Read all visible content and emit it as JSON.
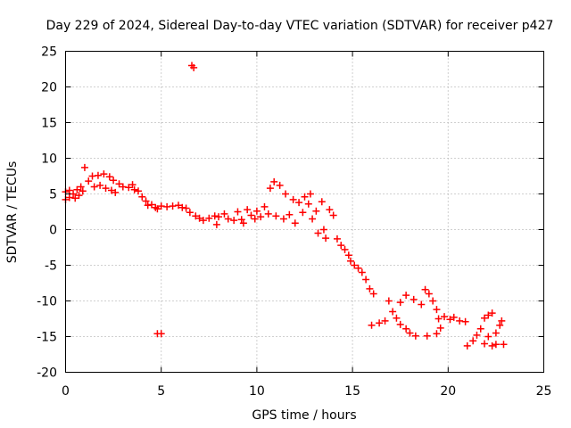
{
  "chart_data": {
    "type": "scatter",
    "title": "Day 229 of 2024, Sidereal Day-to-day VTEC variation (SDTVAR) for receiver p427",
    "xlabel": "GPS time / hours",
    "ylabel": "SDTVAR / TECUs",
    "xlim": [
      0,
      25
    ],
    "ylim": [
      -20,
      25
    ],
    "xticks": [
      0,
      5,
      10,
      15,
      20,
      25
    ],
    "yticks": [
      -20,
      -15,
      -10,
      -5,
      0,
      5,
      10,
      15,
      20,
      25
    ],
    "grid": true,
    "marker": "+",
    "series": [
      {
        "name": "SDTVAR",
        "color": "#ff0000",
        "points": [
          [
            0.0,
            5.3
          ],
          [
            0.0,
            4.2
          ],
          [
            0.2,
            5.5
          ],
          [
            0.2,
            4.5
          ],
          [
            0.4,
            5.0
          ],
          [
            0.5,
            4.4
          ],
          [
            0.6,
            5.6
          ],
          [
            0.7,
            4.8
          ],
          [
            0.8,
            6.0
          ],
          [
            0.9,
            5.4
          ],
          [
            1.0,
            8.7
          ],
          [
            1.2,
            6.8
          ],
          [
            1.4,
            7.5
          ],
          [
            1.5,
            6.0
          ],
          [
            1.7,
            7.6
          ],
          [
            1.8,
            6.2
          ],
          [
            2.0,
            7.8
          ],
          [
            2.1,
            5.8
          ],
          [
            2.3,
            7.4
          ],
          [
            2.4,
            5.5
          ],
          [
            2.5,
            6.9
          ],
          [
            2.6,
            5.2
          ],
          [
            2.8,
            6.4
          ],
          [
            3.0,
            6.0
          ],
          [
            3.3,
            5.9
          ],
          [
            3.5,
            6.3
          ],
          [
            3.6,
            5.6
          ],
          [
            3.8,
            5.4
          ],
          [
            4.0,
            4.6
          ],
          [
            4.2,
            4.0
          ],
          [
            4.3,
            3.4
          ],
          [
            4.5,
            3.5
          ],
          [
            4.7,
            3.1
          ],
          [
            4.8,
            2.9
          ],
          [
            4.8,
            -14.6
          ],
          [
            5.0,
            3.3
          ],
          [
            5.0,
            -14.6
          ],
          [
            5.3,
            3.2
          ],
          [
            5.6,
            3.3
          ],
          [
            5.9,
            3.4
          ],
          [
            6.1,
            3.1
          ],
          [
            6.3,
            3.0
          ],
          [
            6.5,
            2.4
          ],
          [
            6.6,
            23.0
          ],
          [
            6.7,
            22.7
          ],
          [
            6.8,
            1.9
          ],
          [
            7.0,
            1.6
          ],
          [
            7.2,
            1.3
          ],
          [
            7.5,
            1.6
          ],
          [
            7.8,
            1.9
          ],
          [
            7.9,
            0.7
          ],
          [
            8.0,
            1.8
          ],
          [
            8.3,
            2.2
          ],
          [
            8.5,
            1.5
          ],
          [
            8.8,
            1.3
          ],
          [
            9.0,
            2.5
          ],
          [
            9.2,
            1.4
          ],
          [
            9.3,
            0.9
          ],
          [
            9.5,
            2.8
          ],
          [
            9.7,
            2.0
          ],
          [
            9.9,
            1.5
          ],
          [
            10.0,
            2.6
          ],
          [
            10.2,
            1.8
          ],
          [
            10.4,
            3.2
          ],
          [
            10.6,
            2.2
          ],
          [
            10.7,
            5.8
          ],
          [
            10.9,
            6.7
          ],
          [
            11.0,
            1.9
          ],
          [
            11.2,
            6.2
          ],
          [
            11.4,
            1.5
          ],
          [
            11.5,
            5.0
          ],
          [
            11.7,
            2.1
          ],
          [
            11.9,
            4.2
          ],
          [
            12.0,
            0.9
          ],
          [
            12.2,
            3.8
          ],
          [
            12.4,
            2.4
          ],
          [
            12.5,
            4.6
          ],
          [
            12.7,
            3.6
          ],
          [
            12.8,
            5.0
          ],
          [
            12.9,
            1.5
          ],
          [
            13.1,
            2.6
          ],
          [
            13.2,
            -0.5
          ],
          [
            13.4,
            3.9
          ],
          [
            13.5,
            0.0
          ],
          [
            13.6,
            -1.2
          ],
          [
            13.8,
            2.8
          ],
          [
            14.0,
            2.0
          ],
          [
            14.2,
            -1.3
          ],
          [
            14.4,
            -2.2
          ],
          [
            14.6,
            -2.8
          ],
          [
            14.8,
            -3.6
          ],
          [
            14.9,
            -4.4
          ],
          [
            15.1,
            -5.0
          ],
          [
            15.3,
            -5.4
          ],
          [
            15.5,
            -6.0
          ],
          [
            15.7,
            -7.0
          ],
          [
            15.9,
            -8.3
          ],
          [
            16.1,
            -9.0
          ],
          [
            16.0,
            -13.4
          ],
          [
            16.4,
            -13.1
          ],
          [
            16.7,
            -12.8
          ],
          [
            16.9,
            -10.0
          ],
          [
            17.1,
            -11.5
          ],
          [
            17.3,
            -12.4
          ],
          [
            17.5,
            -13.3
          ],
          [
            17.8,
            -13.9
          ],
          [
            18.0,
            -14.5
          ],
          [
            18.3,
            -14.9
          ],
          [
            17.5,
            -10.2
          ],
          [
            17.8,
            -9.2
          ],
          [
            18.2,
            -9.8
          ],
          [
            18.6,
            -10.5
          ],
          [
            18.8,
            -8.4
          ],
          [
            19.0,
            -9.0
          ],
          [
            19.2,
            -10.0
          ],
          [
            19.4,
            -11.2
          ],
          [
            19.5,
            -12.5
          ],
          [
            19.6,
            -13.8
          ],
          [
            19.4,
            -14.6
          ],
          [
            18.9,
            -14.9
          ],
          [
            19.8,
            -12.2
          ],
          [
            20.1,
            -12.6
          ],
          [
            20.3,
            -12.3
          ],
          [
            20.6,
            -12.8
          ],
          [
            20.9,
            -12.9
          ],
          [
            21.0,
            -16.3
          ],
          [
            21.3,
            -15.6
          ],
          [
            21.5,
            -14.8
          ],
          [
            21.7,
            -13.9
          ],
          [
            21.9,
            -12.4
          ],
          [
            22.1,
            -12.0
          ],
          [
            22.3,
            -11.7
          ],
          [
            21.9,
            -16.0
          ],
          [
            22.1,
            -15.0
          ],
          [
            22.3,
            -16.3
          ],
          [
            22.5,
            -16.1
          ],
          [
            22.5,
            -14.5
          ],
          [
            22.7,
            -13.4
          ],
          [
            22.8,
            -12.8
          ],
          [
            22.9,
            -16.1
          ]
        ]
      }
    ]
  }
}
